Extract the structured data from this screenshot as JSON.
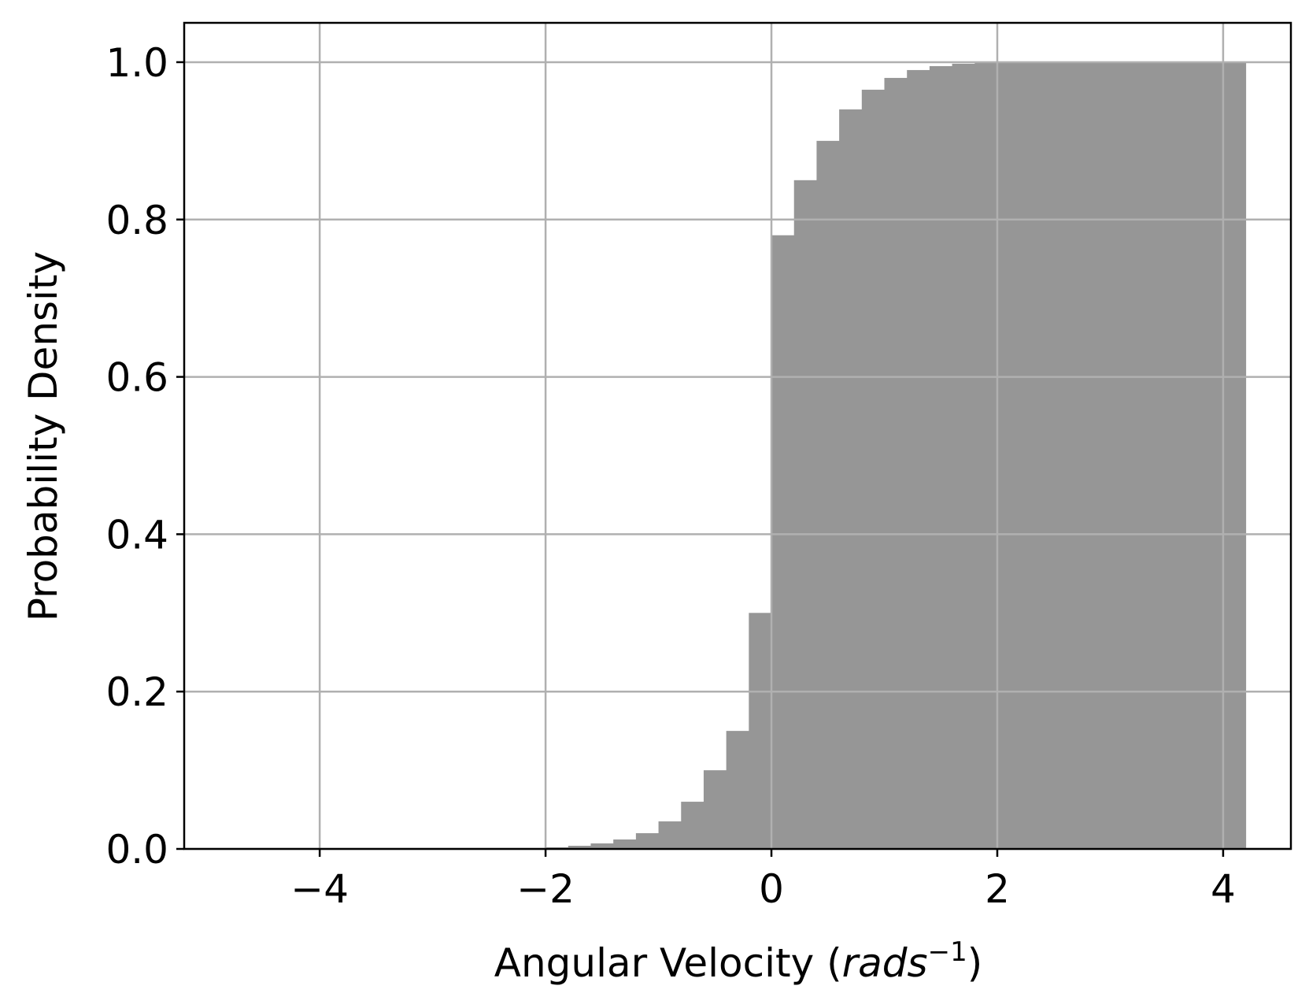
{
  "chart_data": {
    "type": "histogram",
    "xlabel": {
      "text": "Angular Velocity (",
      "unit": "rads",
      "exponent": "−1",
      "close": ")"
    },
    "ylabel": "Probability Density",
    "bins": [
      -4.8,
      -4.6,
      -4.4,
      -4.2,
      -4.0,
      -3.8,
      -3.6,
      -3.4,
      -3.2,
      -3.0,
      -2.8,
      -2.6,
      -2.4,
      -2.2,
      -2.0,
      -1.8,
      -1.6,
      -1.4,
      -1.2,
      -1.0,
      -0.8,
      -0.6,
      -0.4,
      -0.2,
      0.0,
      0.2,
      0.4,
      0.6,
      0.8,
      1.0,
      1.2,
      1.4,
      1.6,
      1.8,
      2.0,
      2.2,
      2.4,
      2.6,
      2.8,
      3.0,
      3.2,
      3.4,
      3.6,
      3.8,
      4.0,
      4.2
    ],
    "values": [
      0,
      0,
      0,
      0,
      0,
      0,
      0,
      0,
      0,
      0,
      0,
      0,
      0,
      0.001,
      0.002,
      0.004,
      0.007,
      0.012,
      0.02,
      0.035,
      0.06,
      0.1,
      0.15,
      0.3,
      0.78,
      0.85,
      0.9,
      0.94,
      0.965,
      0.98,
      0.99,
      0.995,
      0.998,
      0.999,
      1.0,
      1.0,
      1.0,
      1.0,
      1.0,
      1.0,
      1.0,
      1.0,
      1.0,
      1.0,
      1.0
    ],
    "color": "#969696",
    "xlim": [
      -5.2,
      4.6
    ],
    "ylim": [
      0,
      1.05
    ],
    "xticks": [
      {
        "value": -4,
        "label": "−4"
      },
      {
        "value": -2,
        "label": "−2"
      },
      0,
      2,
      4
    ],
    "yticks": [
      {
        "value": 0,
        "label": "0.0"
      },
      0.2,
      0.4,
      0.6,
      0.8,
      {
        "value": 1,
        "label": "1.0"
      }
    ],
    "grid": true
  }
}
